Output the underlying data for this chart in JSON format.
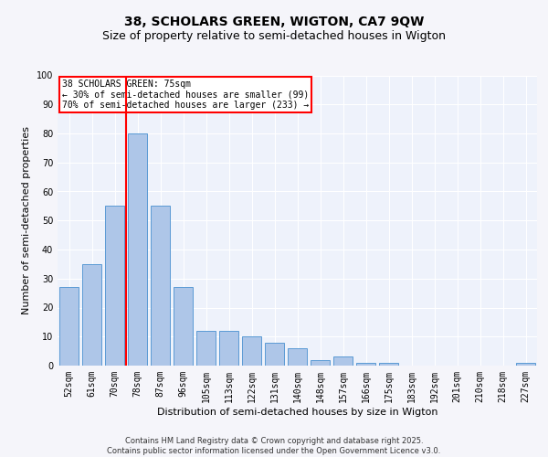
{
  "title1": "38, SCHOLARS GREEN, WIGTON, CA7 9QW",
  "title2": "Size of property relative to semi-detached houses in Wigton",
  "xlabel": "Distribution of semi-detached houses by size in Wigton",
  "ylabel": "Number of semi-detached properties",
  "categories": [
    "52sqm",
    "61sqm",
    "70sqm",
    "78sqm",
    "87sqm",
    "96sqm",
    "105sqm",
    "113sqm",
    "122sqm",
    "131sqm",
    "140sqm",
    "148sqm",
    "157sqm",
    "166sqm",
    "175sqm",
    "183sqm",
    "192sqm",
    "201sqm",
    "210sqm",
    "218sqm",
    "227sqm"
  ],
  "values": [
    27,
    35,
    55,
    80,
    55,
    27,
    12,
    12,
    10,
    8,
    6,
    2,
    3,
    1,
    1,
    0,
    0,
    0,
    0,
    0,
    1
  ],
  "bar_color": "#aec6e8",
  "bar_edge_color": "#5b9bd5",
  "vline_x_index": 2.5,
  "vline_color": "red",
  "annotation_title": "38 SCHOLARS GREEN: 75sqm",
  "annotation_line1": "← 30% of semi-detached houses are smaller (99)",
  "annotation_line2": "70% of semi-detached houses are larger (233) →",
  "annotation_box_color": "red",
  "ylim": [
    0,
    100
  ],
  "yticks": [
    0,
    10,
    20,
    30,
    40,
    50,
    60,
    70,
    80,
    90,
    100
  ],
  "bg_color": "#eef2fb",
  "fig_bg_color": "#f5f5fa",
  "grid_color": "#ffffff",
  "footer": "Contains HM Land Registry data © Crown copyright and database right 2025.\nContains public sector information licensed under the Open Government Licence v3.0.",
  "title_fontsize": 10,
  "subtitle_fontsize": 9,
  "axis_label_fontsize": 8,
  "tick_fontsize": 7,
  "footer_fontsize": 6
}
